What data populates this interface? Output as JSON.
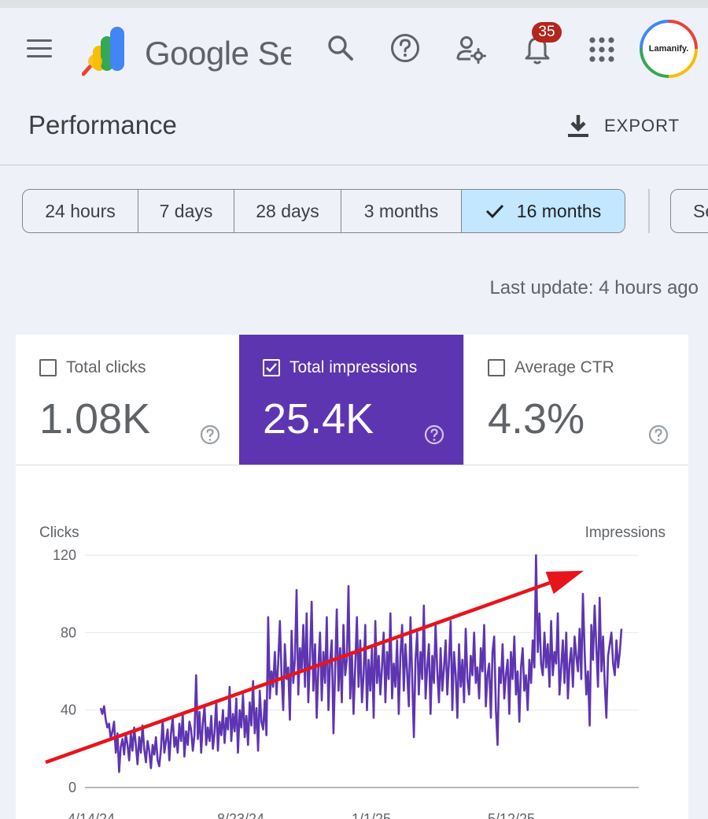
{
  "app": {
    "product_name": "Google Search Console",
    "notification_count": "35",
    "avatar_text": "Lamanify."
  },
  "header": {
    "title": "Performance",
    "export_label": "EXPORT"
  },
  "date_ranges": [
    {
      "label": "24 hours",
      "selected": false
    },
    {
      "label": "7 days",
      "selected": false
    },
    {
      "label": "28 days",
      "selected": false
    },
    {
      "label": "3 months",
      "selected": false
    },
    {
      "label": "16 months",
      "selected": true
    }
  ],
  "more_filter_label": "Search type",
  "last_update": "Last update: 4 hours ago",
  "metrics": [
    {
      "label": "Total clicks",
      "value": "1.08K",
      "checked": false
    },
    {
      "label": "Total impressions",
      "value": "25.4K",
      "checked": true
    },
    {
      "label": "Average CTR",
      "value": "4.3%",
      "checked": false
    }
  ],
  "colors": {
    "accent": "#5e35b1",
    "selected_chip": "#c2e7ff",
    "badge": "#b3261e",
    "annotation_arrow": "#e8141c"
  },
  "chart_data": {
    "type": "line",
    "ylabel_left": "Clicks",
    "ylabel_right": "Impressions",
    "yticks": [
      0,
      40,
      80,
      120
    ],
    "ylim": [
      0,
      120
    ],
    "xticks": [
      "4/14/24",
      "8/23/24",
      "1/1/25",
      "5/12/25"
    ],
    "grid": true,
    "series": [
      {
        "color": "#5e35b1",
        "values": [
          41,
          38,
          42,
          35,
          31,
          33,
          25,
          29,
          34,
          18,
          28,
          8,
          21,
          25,
          17,
          28,
          22,
          14,
          28,
          19,
          31,
          22,
          12,
          26,
          18,
          32,
          20,
          13,
          24,
          19,
          10,
          22,
          17,
          26,
          14,
          11,
          20,
          35,
          18,
          24,
          30,
          14,
          28,
          36,
          21,
          26,
          18,
          33,
          24,
          38,
          16,
          29,
          22,
          34,
          30,
          19,
          27,
          58,
          25,
          39,
          18,
          33,
          42,
          22,
          31,
          24,
          37,
          20,
          28,
          45,
          19,
          34,
          27,
          40,
          23,
          36,
          30,
          52,
          24,
          38,
          29,
          46,
          18,
          40,
          31,
          48,
          26,
          37,
          22,
          44,
          32,
          55,
          28,
          41,
          19,
          50,
          34,
          30,
          45,
          27,
          88,
          46,
          60,
          52,
          70,
          48,
          64,
          86,
          58,
          40,
          74,
          56,
          62,
          35,
          81,
          54,
          66,
          102,
          48,
          72,
          60,
          84,
          52,
          90,
          44,
          68,
          96,
          50,
          74,
          36,
          62,
          80,
          45,
          70,
          54,
          88,
          40,
          65,
          76,
          28,
          60,
          92,
          50,
          72,
          44,
          84,
          58,
          66,
          104,
          46,
          70,
          38,
          62,
          88,
          52,
          76,
          44,
          58,
          84,
          40,
          66,
          50,
          72,
          36,
          86,
          54,
          68,
          48,
          62,
          80,
          44,
          70,
          56,
          90,
          46,
          64,
          52,
          76,
          38,
          68,
          84,
          50,
          74,
          60,
          42,
          88,
          58,
          26,
          66,
          80,
          48,
          70,
          56,
          94,
          46,
          62,
          74,
          38,
          68,
          54,
          84,
          60,
          44,
          72,
          50,
          62,
          76,
          48,
          66,
          86,
          40,
          70,
          58,
          36,
          74,
          52,
          66,
          44,
          82,
          56,
          48,
          68,
          58,
          80,
          54,
          62,
          46,
          72,
          60,
          84,
          42,
          58,
          64,
          36,
          70,
          78,
          40,
          22,
          62,
          54,
          74,
          46,
          58,
          66,
          38,
          70,
          56,
          78,
          48,
          60,
          34,
          62,
          72,
          50,
          58,
          40,
          66,
          54,
          76,
          62,
          120,
          70,
          90,
          64,
          58,
          80,
          62,
          74,
          52,
          86,
          58,
          70,
          64,
          90,
          48,
          62,
          76,
          54,
          80,
          46,
          64,
          72,
          52,
          78,
          68,
          60,
          82,
          56,
          100,
          70,
          48,
          60,
          32,
          84,
          66,
          94,
          72,
          52,
          98,
          60,
          78,
          54,
          36,
          68,
          74,
          80,
          64,
          58,
          76,
          62,
          70,
          82
        ]
      }
    ],
    "annotation": {
      "type": "trend-arrow",
      "color": "#e8141c",
      "from": [
        0,
        13
      ],
      "to": [
        1,
        112
      ]
    }
  }
}
